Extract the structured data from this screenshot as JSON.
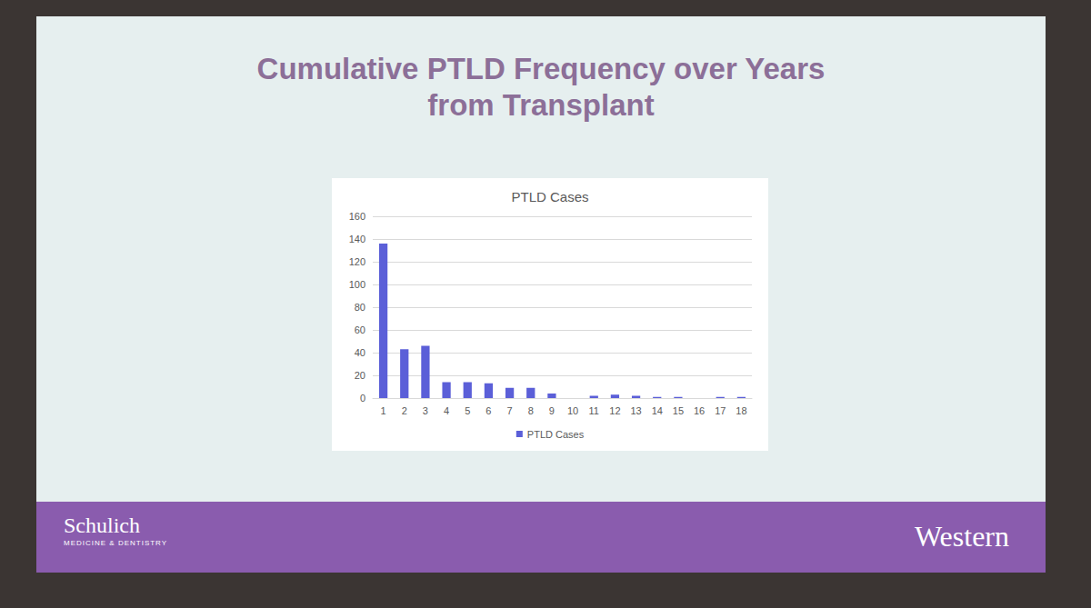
{
  "chart_data": {
    "type": "bar",
    "title": "Cumulative PTLD Frequency over Years from Transplant",
    "subtitle": "PTLD Cases",
    "categories": [
      "1",
      "2",
      "3",
      "4",
      "5",
      "6",
      "7",
      "8",
      "9",
      "10",
      "11",
      "12",
      "13",
      "14",
      "15",
      "16",
      "17",
      "18"
    ],
    "series": [
      {
        "name": "PTLD Cases",
        "color": "#5b5fd8",
        "values": [
          136,
          43,
          46,
          14,
          14,
          13,
          9,
          9,
          4,
          0,
          2,
          3,
          2,
          1,
          1,
          0,
          1,
          1
        ]
      }
    ],
    "ylim": [
      0,
      160
    ],
    "yticks": [
      0,
      20,
      40,
      60,
      80,
      100,
      120,
      140,
      160
    ],
    "grid": true,
    "legend": "bottom"
  },
  "footer": {
    "left": "Schulich",
    "left_sub": "MEDICINE & DENTISTRY",
    "right": "Western"
  }
}
